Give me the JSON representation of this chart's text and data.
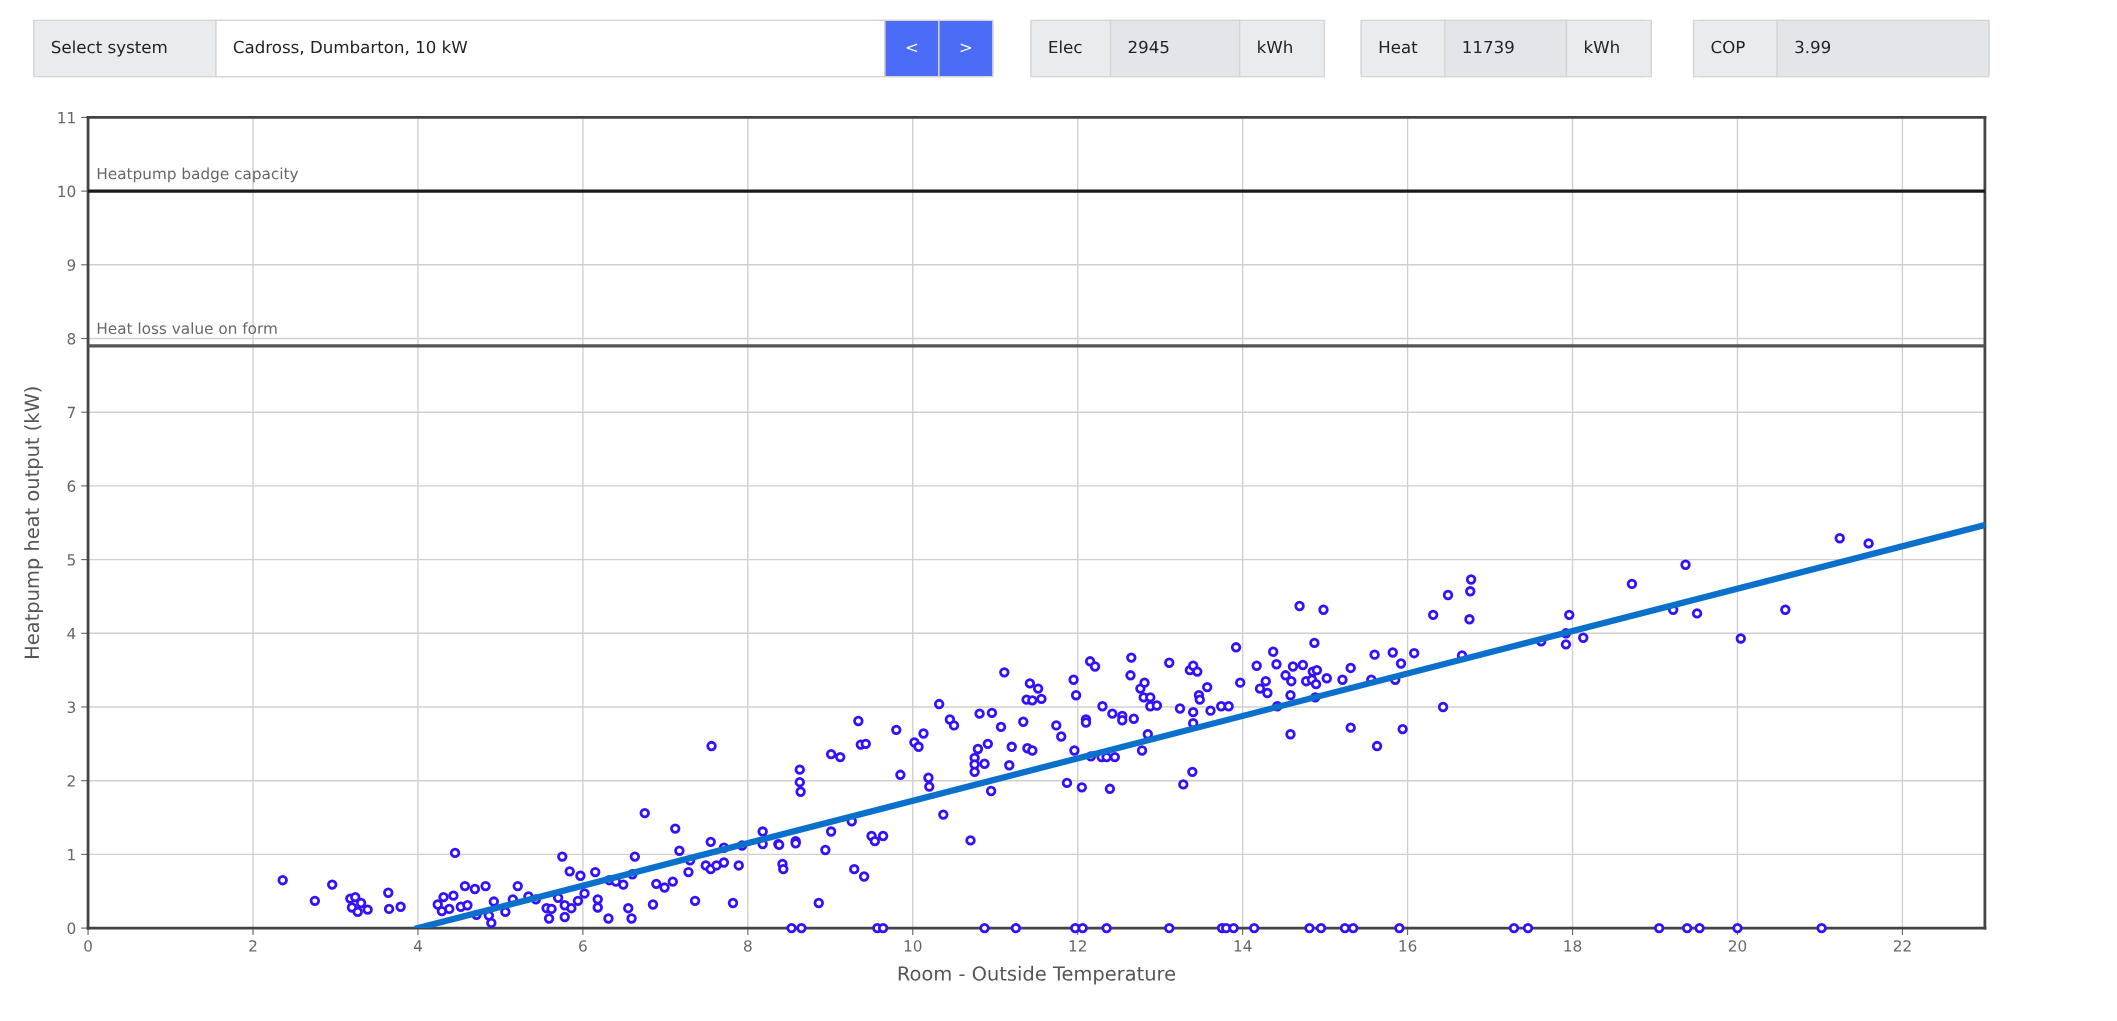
{
  "chart_data": {
    "type": "scatter",
    "xlabel": "Room - Outside Temperature",
    "ylabel": "Heatpump heat output (kW)",
    "xlim": [
      0,
      23
    ],
    "xticks": [
      0,
      2,
      4,
      6,
      8,
      10,
      12,
      14,
      16,
      18,
      20,
      22
    ],
    "ylim": [
      0,
      11
    ],
    "yticks": [
      0,
      1,
      2,
      3,
      4,
      5,
      6,
      7,
      8,
      9,
      10,
      11
    ],
    "grid": true,
    "marker": "circle",
    "annotations": [
      "Select system",
      "Cadross, Dumbarton, 10 kW",
      "<",
      ">",
      "Elec",
      "2945",
      "kWh",
      "Heat",
      "11739",
      "kWh",
      "COP",
      "3.99"
    ],
    "ref_lines": [
      {
        "axis": "y",
        "value": 10,
        "label": "Heatpump badge capacity",
        "color": "#1a1a1a"
      },
      {
        "axis": "y",
        "value": 7.9,
        "label": "Heat loss value on form",
        "color": "#555555"
      }
    ],
    "series": [
      {
        "color": "#3311ff",
        "x": [
          2.36,
          2.75,
          2.96,
          3.18,
          3.24,
          3.31,
          3.2,
          3.27,
          3.39,
          3.64,
          3.65,
          3.79,
          4.45,
          4.31,
          4.43,
          4.24,
          4.29,
          4.38,
          4.52,
          4.6,
          4.57,
          4.69,
          4.82,
          4.71,
          4.86,
          4.89,
          4.92,
          5.06,
          5.15,
          5.21,
          5.34,
          5.43,
          5.56,
          5.62,
          5.59,
          5.7,
          5.75,
          5.78,
          5.78,
          5.86,
          5.84,
          5.94,
          5.97,
          6.02,
          6.15,
          6.18,
          6.18,
          6.31,
          6.32,
          6.4,
          6.49,
          6.55,
          6.59,
          6.6,
          6.63,
          6.75,
          6.85,
          6.89,
          6.99,
          7.09,
          7.12,
          7.17,
          7.28,
          7.3,
          7.36,
          7.49,
          7.55,
          7.56,
          7.55,
          7.62,
          7.71,
          7.71,
          7.82,
          7.89,
          7.93,
          8.18,
          8.18,
          8.37,
          8.38,
          8.42,
          8.43,
          8.58,
          8.58,
          8.63,
          8.63,
          8.64,
          8.86,
          8.94,
          9.01,
          9.01,
          9.12,
          9.26,
          9.29,
          9.34,
          9.37,
          9.43,
          9.41,
          9.5,
          9.54,
          9.64,
          9.8,
          9.85,
          10.02,
          10.07,
          10.13,
          10.19,
          10.2,
          10.32,
          10.37,
          10.45,
          10.5,
          10.7,
          10.75,
          10.75,
          10.75,
          10.79,
          10.81,
          10.87,
          10.91,
          10.95,
          10.96,
          11.07,
          11.11,
          11.17,
          11.2,
          11.34,
          11.38,
          11.42,
          11.39,
          11.45,
          11.45,
          11.52,
          11.56,
          11.74,
          11.8,
          11.87,
          11.95,
          11.96,
          11.98,
          12.05,
          12.1,
          12.1,
          12.15,
          12.21,
          12.16,
          12.3,
          12.29,
          12.35,
          12.39,
          12.42,
          12.45,
          12.54,
          12.54,
          12.64,
          12.65,
          12.68,
          12.76,
          12.78,
          12.8,
          12.81,
          12.85,
          12.88,
          12.88,
          12.96,
          13.11,
          13.24,
          13.28,
          13.36,
          13.4,
          13.39,
          13.4,
          13.4,
          13.45,
          13.47,
          13.48,
          13.57,
          13.61,
          13.74,
          13.83,
          13.92,
          13.97,
          14.17,
          14.21,
          14.28,
          14.3,
          14.37,
          14.41,
          14.42,
          14.52,
          14.58,
          14.58,
          14.59,
          14.61,
          14.69,
          14.73,
          14.77,
          14.84,
          14.85,
          14.87,
          14.88,
          14.89,
          14.9,
          14.98,
          15.02,
          15.21,
          15.31,
          15.31,
          15.56,
          15.6,
          15.63,
          15.82,
          15.85,
          15.92,
          15.94,
          16.08,
          16.31,
          16.43,
          16.49,
          16.66,
          16.75,
          16.76,
          16.77,
          17.62,
          17.92,
          17.92,
          17.96,
          18.13,
          18.72,
          19.22,
          19.37,
          19.51,
          20.04,
          20.58,
          21.24,
          21.59,
          8.53,
          8.65,
          9.57,
          9.64,
          10.87,
          11.25,
          11.97,
          12.06,
          12.35,
          13.11,
          13.75,
          13.8,
          13.89,
          14.14,
          14.81,
          14.95,
          15.24,
          15.34,
          15.9,
          17.29,
          17.46,
          19.05,
          19.39,
          19.54,
          20.0,
          21.02
        ],
        "values": [
          0.65,
          0.37,
          0.59,
          0.4,
          0.42,
          0.34,
          0.28,
          0.22,
          0.25,
          0.48,
          0.26,
          0.29,
          1.02,
          0.42,
          0.44,
          0.32,
          0.23,
          0.26,
          0.29,
          0.31,
          0.57,
          0.53,
          0.57,
          0.18,
          0.17,
          0.07,
          0.36,
          0.22,
          0.39,
          0.57,
          0.43,
          0.39,
          0.27,
          0.26,
          0.13,
          0.41,
          0.97,
          0.31,
          0.15,
          0.27,
          0.77,
          0.37,
          0.71,
          0.47,
          0.76,
          0.39,
          0.28,
          0.13,
          0.65,
          0.63,
          0.59,
          0.27,
          0.13,
          0.73,
          0.97,
          1.56,
          0.32,
          0.6,
          0.55,
          0.63,
          1.35,
          1.05,
          0.76,
          0.92,
          0.37,
          0.85,
          1.17,
          2.47,
          0.8,
          0.85,
          0.89,
          1.09,
          0.34,
          0.85,
          1.12,
          1.31,
          1.14,
          1.14,
          1.13,
          0.87,
          0.8,
          1.18,
          1.15,
          2.15,
          1.98,
          1.85,
          0.34,
          1.06,
          2.36,
          1.31,
          2.32,
          1.45,
          0.8,
          2.81,
          2.49,
          2.5,
          0.7,
          1.25,
          1.18,
          1.25,
          2.69,
          2.08,
          2.52,
          2.46,
          2.64,
          2.04,
          1.92,
          3.04,
          1.54,
          2.83,
          2.75,
          1.19,
          2.31,
          2.22,
          2.12,
          2.43,
          2.91,
          2.23,
          2.5,
          1.86,
          2.92,
          2.73,
          3.47,
          2.21,
          2.46,
          2.8,
          3.1,
          3.32,
          2.44,
          2.41,
          3.09,
          3.25,
          3.11,
          2.75,
          2.6,
          1.97,
          3.37,
          2.41,
          3.16,
          1.91,
          2.83,
          2.79,
          3.62,
          3.55,
          2.33,
          3.01,
          2.32,
          2.32,
          1.89,
          2.91,
          2.32,
          2.88,
          2.82,
          3.43,
          3.67,
          2.84,
          3.25,
          2.41,
          3.13,
          3.33,
          2.63,
          3.13,
          3.01,
          3.02,
          3.6,
          2.98,
          1.95,
          3.5,
          3.56,
          2.12,
          2.93,
          2.78,
          3.48,
          3.16,
          3.1,
          3.27,
          2.95,
          3.01,
          3.01,
          3.81,
          3.33,
          3.56,
          3.25,
          3.35,
          3.19,
          3.75,
          3.58,
          3.01,
          3.43,
          3.16,
          2.63,
          3.35,
          3.55,
          4.37,
          3.57,
          3.35,
          3.37,
          3.48,
          3.87,
          3.13,
          3.31,
          3.5,
          4.32,
          3.39,
          3.37,
          3.53,
          2.72,
          3.37,
          3.71,
          2.47,
          3.74,
          3.37,
          3.59,
          2.7,
          3.73,
          4.25,
          3.0,
          4.52,
          3.7,
          4.19,
          4.57,
          4.73,
          3.89,
          3.85,
          4.0,
          4.25,
          3.94,
          4.67,
          4.32,
          4.93,
          4.27,
          3.93,
          4.32,
          5.29,
          5.22,
          0,
          0,
          0,
          0,
          0,
          0,
          0,
          0,
          0,
          0,
          0,
          0,
          0,
          0,
          0,
          0,
          0,
          0,
          0,
          0,
          0,
          0,
          0,
          0,
          0,
          0
        ]
      },
      {
        "type": "line",
        "color": "#0a70cc",
        "marker": "none",
        "line_style": "solid",
        "x": [
          4,
          23
        ],
        "values": [
          0,
          5.47
        ]
      }
    ]
  }
}
